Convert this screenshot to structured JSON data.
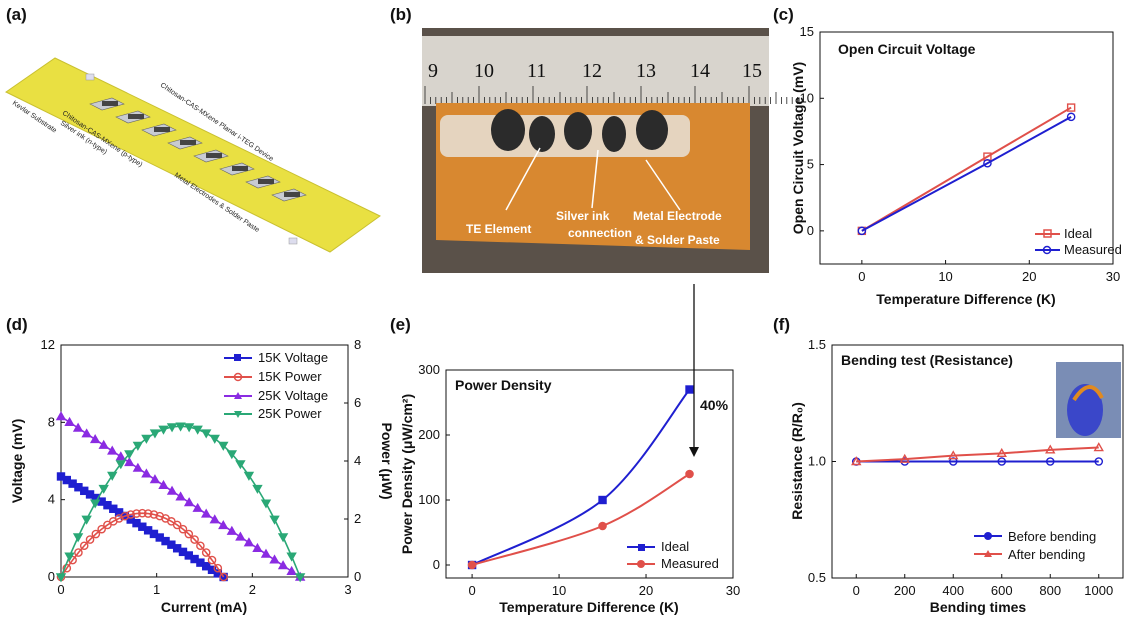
{
  "panel_labels": [
    "(a)",
    "(b)",
    "(c)",
    "(d)",
    "(e)",
    "(f)"
  ],
  "panel_a": {
    "labels": [
      "Kevlar Substrate",
      "Chitosan-CAS-MXene Planar i-TEG Device",
      "Chitosan-CAS-MXene (p-type)",
      "Silver ink (n-type)",
      "Metal Electrodes & Solder Paste"
    ]
  },
  "panel_b": {
    "ruler_numbers": [
      "9",
      "10",
      "11",
      "12",
      "13",
      "14",
      "15"
    ],
    "annotations": [
      "TE Element",
      "Silver ink",
      "connection",
      "Metal Electrode",
      "& Solder Paste"
    ]
  },
  "colors": {
    "red": "#e0504a",
    "blue": "#1f1fd0",
    "purple": "#8a2be2",
    "green": "#2aa876",
    "photo_bg": "#5a5149",
    "kevlar": "#e9e042"
  },
  "chart_data": [
    {
      "id": "c",
      "type": "line",
      "title": "Open Circuit Voltage",
      "xlabel": "Temperature Difference (K)",
      "ylabel": "Open Circuit Voltage (mV)",
      "xlim": [
        -5,
        30
      ],
      "ylim": [
        -2.5,
        15
      ],
      "xticks": [
        0,
        10,
        20,
        30
      ],
      "yticks": [
        0,
        5,
        10,
        15
      ],
      "legend": "bottom-right",
      "series": [
        {
          "name": "Ideal",
          "x": [
            0,
            15,
            25
          ],
          "y": [
            0,
            5.6,
            9.3
          ],
          "color": "#e0504a",
          "marker": "square"
        },
        {
          "name": "Measured",
          "x": [
            0,
            15,
            25
          ],
          "y": [
            0,
            5.1,
            8.6
          ],
          "color": "#1f1fd0",
          "marker": "circle"
        }
      ]
    },
    {
      "id": "d",
      "type": "line",
      "xlabel": "Current (mA)",
      "ylabel": "Voltage (mV)",
      "y2label": "Power (μW)",
      "xlim": [
        0,
        3
      ],
      "ylim": [
        0,
        12
      ],
      "y2lim": [
        0,
        8
      ],
      "xticks": [
        0,
        1,
        2,
        3
      ],
      "yticks": [
        0,
        4,
        8,
        12
      ],
      "y2ticks": [
        0,
        2,
        4,
        6,
        8
      ],
      "legend": "top-right",
      "series": [
        {
          "name": "15K Voltage",
          "axis": "left",
          "color": "#1f1fd0",
          "marker": "square",
          "x0": 0,
          "x1": 1.7,
          "y0": 5.2,
          "y1": 0,
          "kind": "linear"
        },
        {
          "name": "15K Power",
          "axis": "right",
          "color": "#e0504a",
          "marker": "circle",
          "x0": 0,
          "x1": 1.7,
          "peak": 2.2,
          "kind": "parabola"
        },
        {
          "name": "25K Voltage",
          "axis": "left",
          "color": "#8a2be2",
          "marker": "triangle-up",
          "x0": 0,
          "x1": 2.5,
          "y0": 8.3,
          "y1": 0,
          "kind": "linear"
        },
        {
          "name": "25K Power",
          "axis": "right",
          "color": "#2aa876",
          "marker": "triangle-down",
          "x0": 0,
          "x1": 2.5,
          "peak": 5.2,
          "kind": "parabola"
        }
      ]
    },
    {
      "id": "e",
      "type": "line",
      "title": "Power Density",
      "xlabel": "Temperature Difference (K)",
      "ylabel": "Power Density (μW/cm²)",
      "xlim": [
        -3,
        30
      ],
      "ylim": [
        -20,
        300
      ],
      "xticks": [
        0,
        10,
        20,
        30
      ],
      "yticks": [
        0,
        100,
        200,
        300
      ],
      "legend": "bottom-right",
      "annotation": "40%",
      "series": [
        {
          "name": "Ideal",
          "x": [
            0,
            15,
            25
          ],
          "y": [
            0,
            100,
            270
          ],
          "color": "#1f1fd0",
          "marker": "square"
        },
        {
          "name": "Measured",
          "x": [
            0,
            15,
            25
          ],
          "y": [
            0,
            60,
            140
          ],
          "color": "#e0504a",
          "marker": "circle"
        }
      ]
    },
    {
      "id": "f",
      "type": "line",
      "title": "Bending test (Resistance)",
      "xlabel": "Bending times",
      "ylabel": "Resistance (R/R₀)",
      "xlim": [
        -100,
        1100
      ],
      "ylim": [
        0.5,
        1.5
      ],
      "xticks": [
        0,
        200,
        400,
        600,
        800,
        1000
      ],
      "yticks": [
        0.5,
        1.0,
        1.5
      ],
      "legend": "bottom-right",
      "series": [
        {
          "name": "Before bending",
          "x": [
            0,
            200,
            400,
            600,
            800,
            1000
          ],
          "y": [
            1.0,
            1.0,
            1.0,
            1.0,
            1.0,
            1.0
          ],
          "color": "#1f1fd0",
          "marker": "circle"
        },
        {
          "name": "After bending",
          "x": [
            0,
            200,
            400,
            600,
            800,
            1000
          ],
          "y": [
            1.0,
            1.01,
            1.025,
            1.035,
            1.05,
            1.06
          ],
          "color": "#e0504a",
          "marker": "triangle-up"
        }
      ]
    }
  ]
}
